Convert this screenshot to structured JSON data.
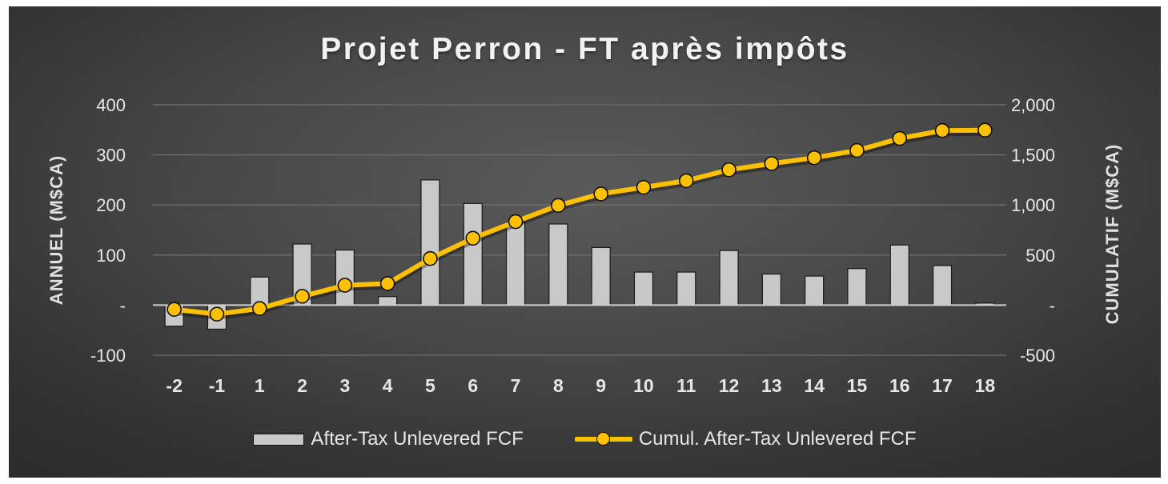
{
  "chart_data": {
    "type": "bar",
    "title": "Projet Perron - FT après impôts",
    "categories": [
      "-2",
      "-1",
      "1",
      "2",
      "3",
      "4",
      "5",
      "6",
      "7",
      "8",
      "9",
      "10",
      "11",
      "12",
      "13",
      "14",
      "15",
      "16",
      "17",
      "18"
    ],
    "series": [
      {
        "name": "After-Tax Unlevered FCF",
        "type": "bar",
        "axis": "left",
        "color": "#c8c8c8",
        "values": [
          -42,
          -48,
          56,
          122,
          110,
          17,
          250,
          203,
          165,
          162,
          115,
          66,
          66,
          109,
          62,
          58,
          73,
          120,
          79,
          4
        ]
      },
      {
        "name": "Cumul. After-Tax Unlevered FCF",
        "type": "line",
        "axis": "right",
        "color": "#ffc000",
        "values": [
          -42,
          -90,
          -34,
          88,
          198,
          215,
          465,
          668,
          833,
          995,
          1110,
          1176,
          1242,
          1351,
          1413,
          1471,
          1544,
          1664,
          1743,
          1747
        ]
      }
    ],
    "y_left": {
      "label": "ANNUEL (M$CA)",
      "ylim": [
        -100,
        400
      ],
      "ticks": [
        {
          "value": 400,
          "label": "400"
        },
        {
          "value": 300,
          "label": "300"
        },
        {
          "value": 200,
          "label": "200"
        },
        {
          "value": 100,
          "label": "100"
        },
        {
          "value": 0,
          "label": "-"
        },
        {
          "value": -100,
          "label": "-100"
        }
      ]
    },
    "y_right": {
      "label": "CUMULATIF (M$CA)",
      "ylim": [
        -500,
        2000
      ],
      "ticks": [
        {
          "value": 2000,
          "label": "2,000"
        },
        {
          "value": 1500,
          "label": "1,500"
        },
        {
          "value": 1000,
          "label": "1,000"
        },
        {
          "value": 500,
          "label": "500"
        },
        {
          "value": 0,
          "label": "-"
        },
        {
          "value": -500,
          "label": "-500"
        }
      ]
    },
    "grid": true,
    "legend_position": "bottom"
  }
}
